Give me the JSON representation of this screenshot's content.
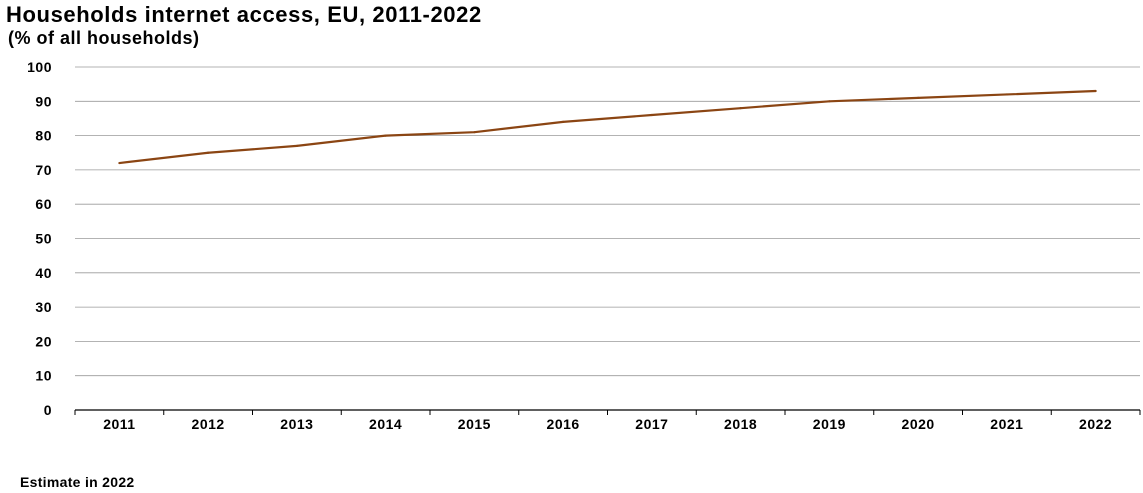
{
  "title": "Households internet access, EU, 2011-2022",
  "subtitle": "(% of all households)",
  "footnote": "Estimate in 2022",
  "colors": {
    "line": "#8B4513",
    "grid": "#9a9a9a",
    "axis": "#000000"
  },
  "chart_data": {
    "type": "line",
    "categories": [
      "2011",
      "2012",
      "2013",
      "2014",
      "2015",
      "2016",
      "2017",
      "2018",
      "2019",
      "2020",
      "2021",
      "2022"
    ],
    "series": [
      {
        "values": [
          72,
          75,
          77,
          80,
          81,
          84,
          86,
          88,
          90,
          91,
          92,
          93
        ]
      }
    ],
    "title": "Households internet access, EU, 2011-2022",
    "ylabel": "(% of all households)",
    "xlabel": "",
    "ylim": [
      0,
      100
    ],
    "yticks": [
      0,
      10,
      20,
      30,
      40,
      50,
      60,
      70,
      80,
      90,
      100
    ],
    "grid": true,
    "legend": "none"
  }
}
